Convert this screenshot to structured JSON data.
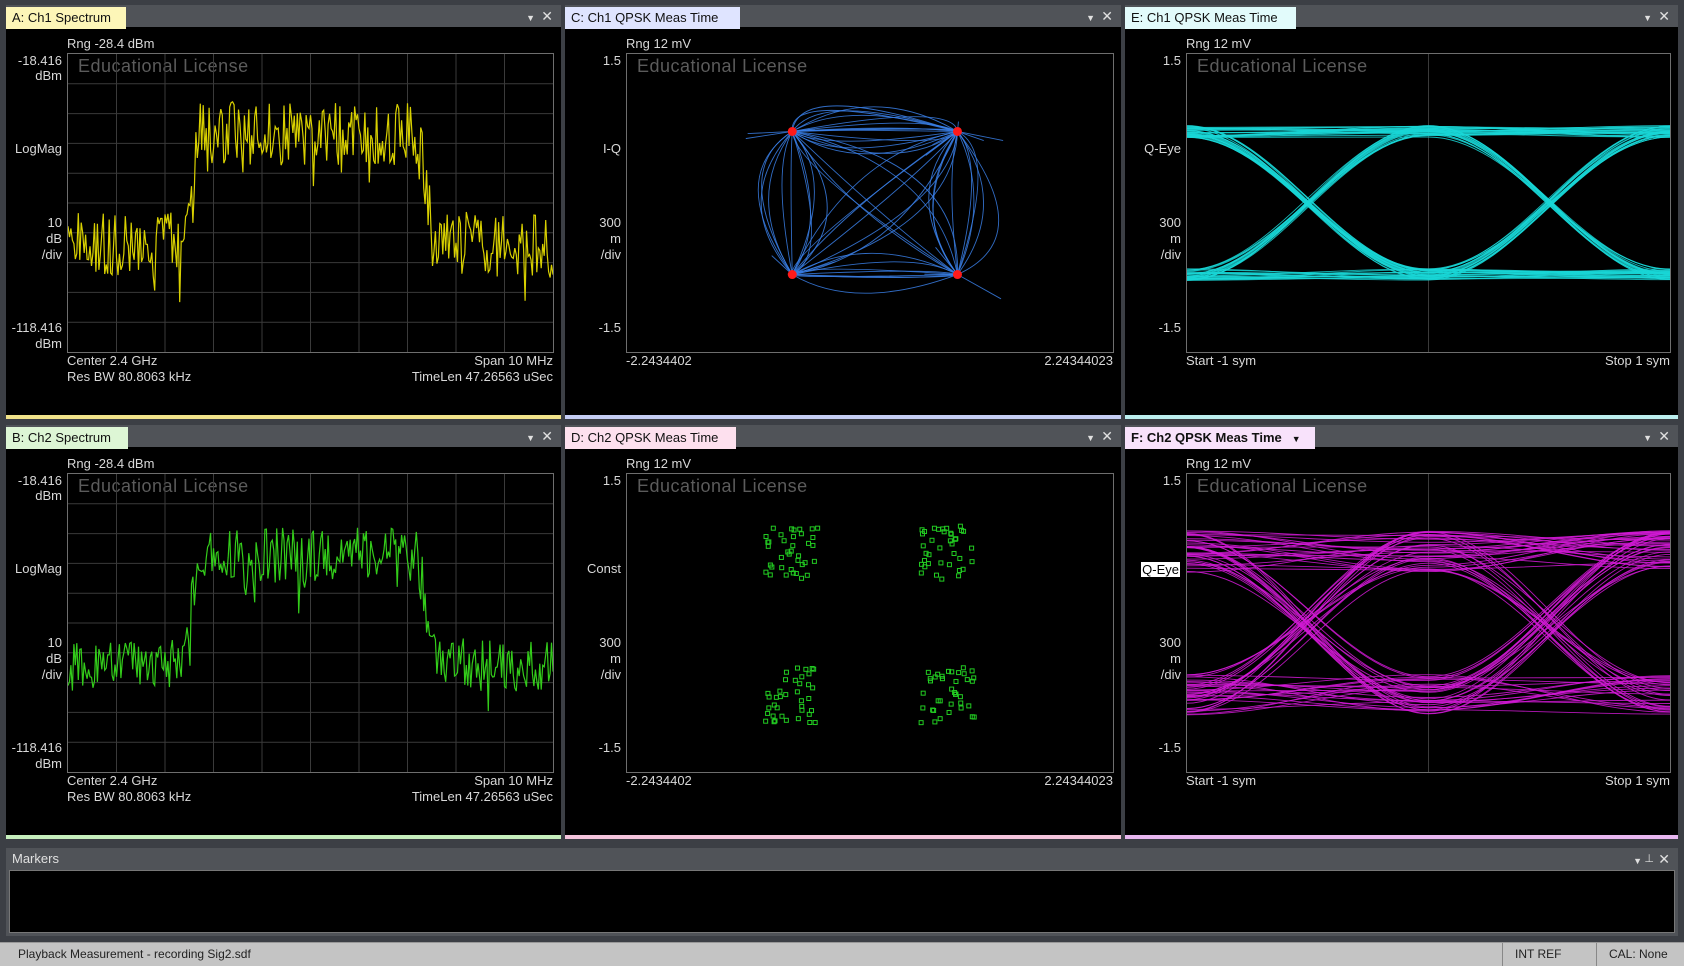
{
  "panes": [
    {
      "id": "A",
      "title": "A: Ch1 Spectrum",
      "tab_color": "#fdf6b8",
      "strip_color": "#f1e38a",
      "type": "spectrum",
      "rng": "Rng -28.4 dBm",
      "y_top": "-18.416",
      "y_top_unit": "dBm",
      "y_mode": "LogMag",
      "scale_val": "10",
      "scale_unit": "dB",
      "scale_div": "/div",
      "y_bot": "-118.416",
      "y_bot_unit": "dBm",
      "x_left": "Center 2.4 GHz",
      "x_right": "Span 10 MHz",
      "x_left2": "Res BW 80.8063 kHz",
      "x_right2": "TimeLen 47.26563 uSec",
      "trace_color": "#d8d000",
      "watermark": "Educational License",
      "seed": 3,
      "noise_amp": 0.11
    },
    {
      "id": "C",
      "title": "C: Ch1 QPSK Meas Time",
      "tab_color": "#dfe4ff",
      "strip_color": "#c5cdf4",
      "type": "iq",
      "rng": "Rng 12 mV",
      "y_top": "1.5",
      "y_mode": "I-Q",
      "scale_val": "300",
      "scale_unit": "m",
      "scale_div": "/div",
      "y_bot": "-1.5",
      "x_left": "-2.2434402",
      "x_right": "2.24344023",
      "trace_color": "#3a7fe6",
      "point_color": "#ff1a1a",
      "watermark": "Educational License",
      "seed": 7
    },
    {
      "id": "E",
      "title": "E: Ch1 QPSK Meas Time",
      "tab_color": "#e2fbfb",
      "strip_color": "#bcefef",
      "type": "eye",
      "rng": "Rng 12 mV",
      "y_top": "1.5",
      "y_mode": "Q-Eye",
      "scale_val": "300",
      "scale_unit": "m",
      "scale_div": "/div",
      "y_bot": "-1.5",
      "x_left": "Start -1  sym",
      "x_right": "Stop 1  sym",
      "trace_color": "#19d6d6",
      "watermark": "Educational License",
      "seed": 11,
      "spread": 0.04
    },
    {
      "id": "B",
      "title": "B: Ch2 Spectrum",
      "tab_color": "#ddf6d5",
      "strip_color": "#c6eebd",
      "type": "spectrum",
      "rng": "Rng -28.4 dBm",
      "y_top": "-18.416",
      "y_top_unit": "dBm",
      "y_mode": "LogMag",
      "scale_val": "10",
      "scale_unit": "dB",
      "scale_div": "/div",
      "y_bot": "-118.416",
      "y_bot_unit": "dBm",
      "x_left": "Center 2.4 GHz",
      "x_right": "Span 10 MHz",
      "x_left2": "Res BW 80.8063 kHz",
      "x_right2": "TimeLen 47.26563 uSec",
      "trace_color": "#33cc1a",
      "watermark": "Educational License",
      "seed": 5,
      "noise_amp": 0.09
    },
    {
      "id": "D",
      "title": "D: Ch2 QPSK Meas Time",
      "tab_color": "#fde0ee",
      "strip_color": "#f4c4dc",
      "type": "const",
      "rng": "Rng 12 mV",
      "y_top": "1.5",
      "y_mode": "Const",
      "scale_val": "300",
      "scale_unit": "m",
      "scale_div": "/div",
      "y_bot": "-1.5",
      "x_left": "-2.2434402",
      "x_right": "2.24344023",
      "trace_color": "#22cc22",
      "watermark": "Educational License",
      "seed": 13
    },
    {
      "id": "F",
      "title": "F: Ch2 QPSK Meas Time",
      "tab_color": "#f8e2fb",
      "strip_color": "#e7b6f0",
      "type": "eye",
      "active": true,
      "rng": "Rng 12 mV",
      "y_top": "1.5",
      "y_mode": "Q-Eye",
      "y_mode_boxed": true,
      "scale_val": "300",
      "scale_unit": "m",
      "scale_div": "/div",
      "y_bot": "-1.5",
      "x_left": "Start -1  sym",
      "x_right": "Stop 1  sym",
      "trace_color": "#d21ad6",
      "watermark": "Educational License",
      "seed": 17,
      "spread": 0.14
    }
  ],
  "markers": {
    "title": "Markers"
  },
  "status": {
    "message": "Playback Measurement - recording Sig2.sdf",
    "int_ref": "INT REF",
    "cal": "CAL: None"
  }
}
